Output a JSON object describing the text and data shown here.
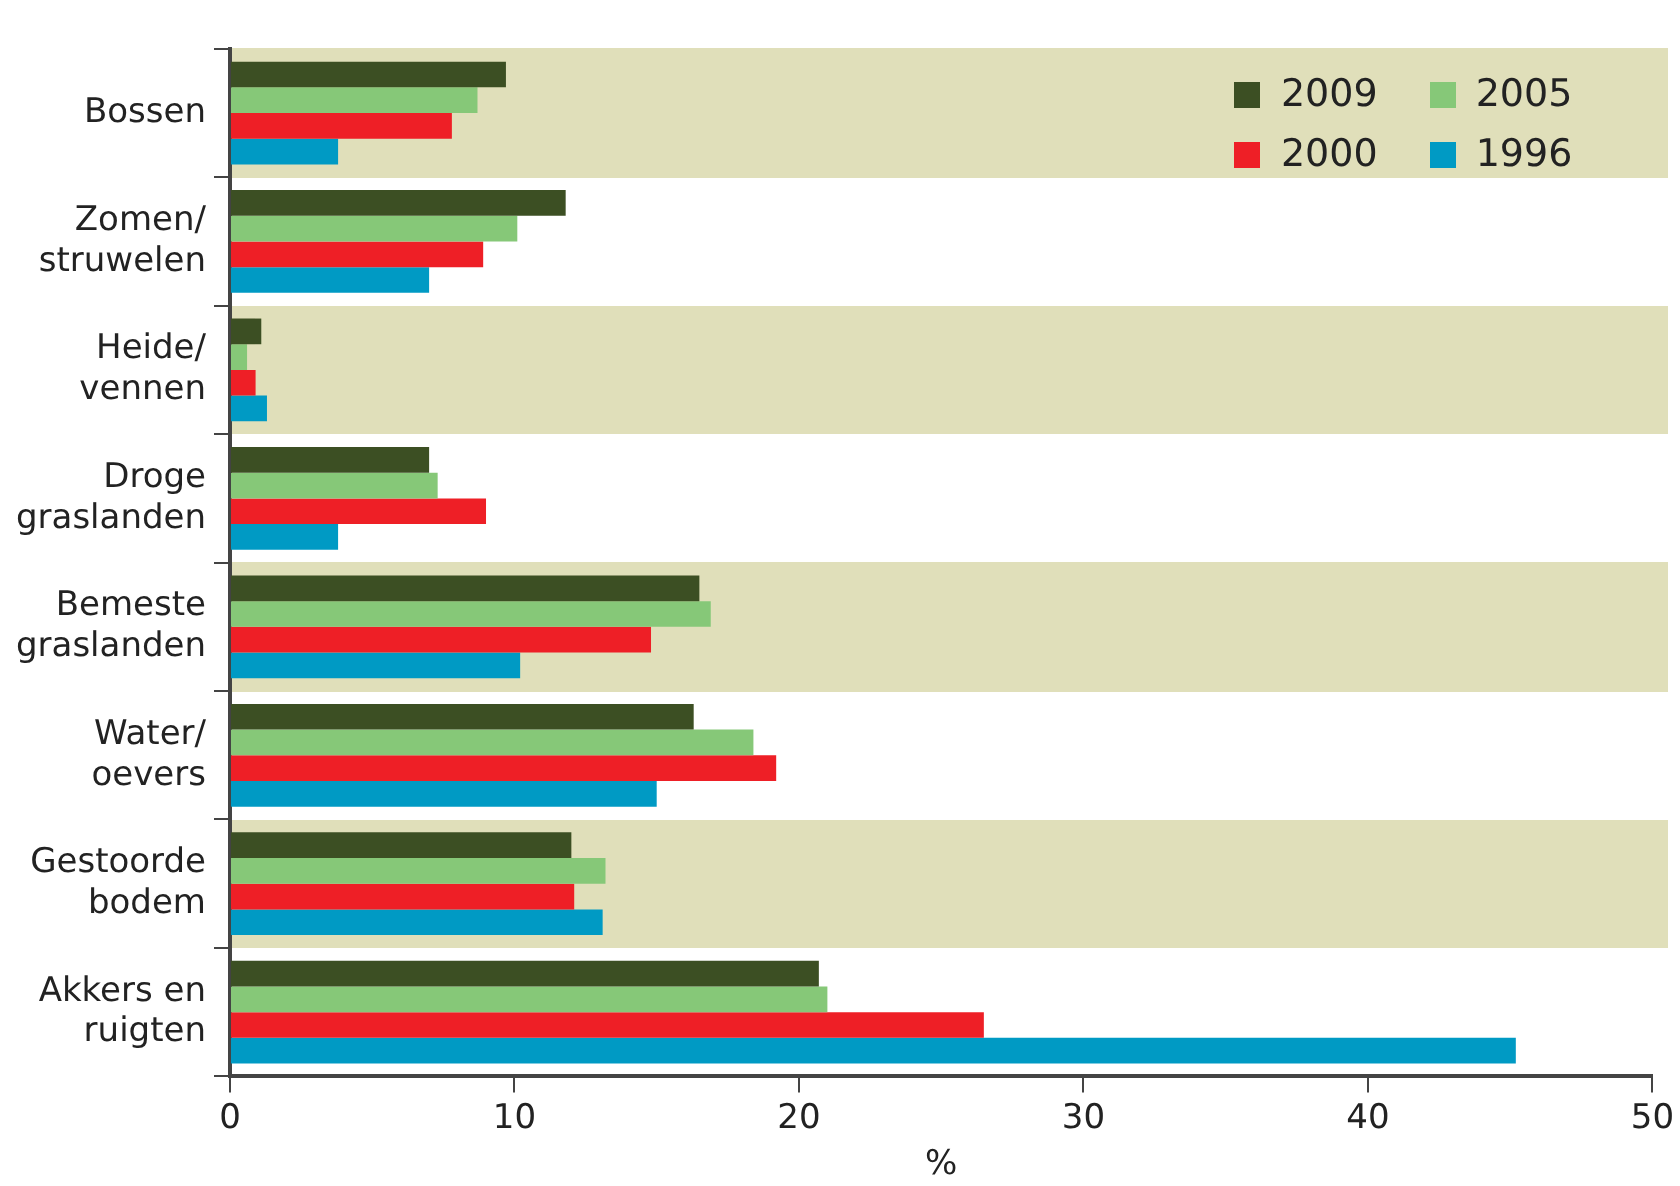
{
  "chart_data": {
    "type": "bar",
    "orientation": "horizontal",
    "xlabel": "%",
    "categories": [
      "Bossen",
      "Zomen/ struwelen",
      "Heide/ vennen",
      "Droge graslanden",
      "Bemeste graslanden",
      "Water/ oevers",
      "Gestoorde bodem",
      "Akkers en ruigten"
    ],
    "series": [
      {
        "name": "2009",
        "color": "#3c4f23",
        "values": [
          9.7,
          11.8,
          1.1,
          7.0,
          16.5,
          16.3,
          12.0,
          20.7
        ]
      },
      {
        "name": "2005",
        "color": "#86c878",
        "values": [
          8.7,
          10.1,
          0.6,
          7.3,
          16.9,
          18.4,
          13.2,
          21.0
        ]
      },
      {
        "name": "2000",
        "color": "#ee1f26",
        "values": [
          7.8,
          8.9,
          0.9,
          9.0,
          14.8,
          19.2,
          12.1,
          26.5
        ]
      },
      {
        "name": "1996",
        "color": "#009ac4",
        "values": [
          3.8,
          7.0,
          1.3,
          3.8,
          10.2,
          15.0,
          13.1,
          45.2
        ]
      }
    ],
    "xlim": [
      0,
      50
    ],
    "xticks": [
      0,
      10,
      20,
      30,
      40,
      50
    ],
    "grid": false,
    "legend": "top right"
  }
}
